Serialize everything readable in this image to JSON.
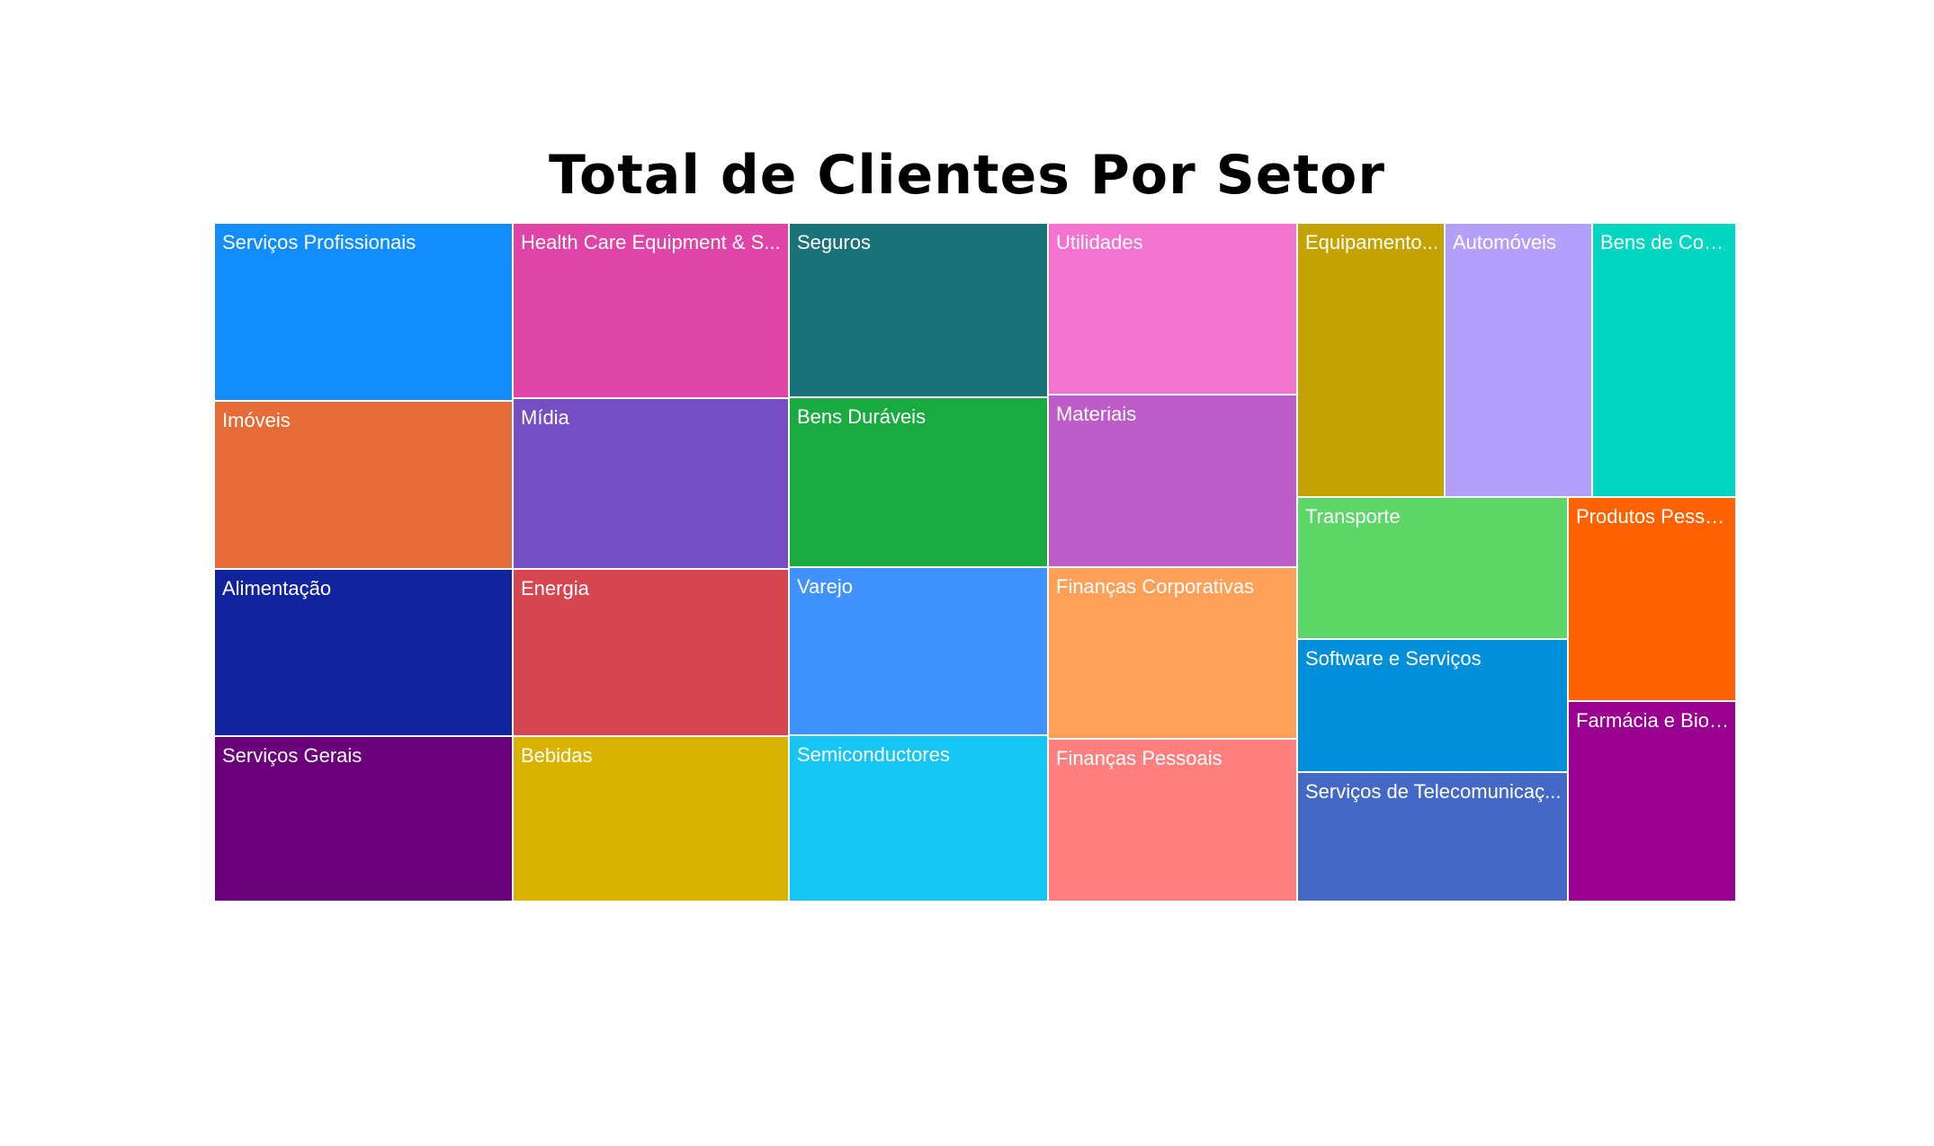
{
  "chart_data": {
    "type": "treemap",
    "title": "Total de Clientes Por Setor",
    "columns": [
      {
        "tiles": [
          {
            "label": "Serviços Profissionais",
            "color": "#118DFF",
            "rel": 198
          },
          {
            "label": "Imóveis",
            "color": "#E66C37",
            "rel": 187
          },
          {
            "label": "Alimentação",
            "color": "#12239E",
            "rel": 186
          },
          {
            "label": "Serviços Gerais",
            "color": "#6B007B",
            "rel": 184
          }
        ]
      },
      {
        "tiles": [
          {
            "label": "Health Care Equipment & S...",
            "color": "#E044A7",
            "rel": 195
          },
          {
            "label": "Mídia",
            "color": "#744EC2",
            "rel": 190
          },
          {
            "label": "Energia",
            "color": "#D64550",
            "rel": 186
          },
          {
            "label": "Bebidas",
            "color": "#D9B300",
            "rel": 184
          }
        ]
      },
      {
        "tiles": [
          {
            "label": "Seguros",
            "color": "#197278",
            "rel": 194
          },
          {
            "label": "Bens Duráveis",
            "color": "#1AAB40",
            "rel": 189
          },
          {
            "label": "Varejo",
            "color": "#4092FF",
            "rel": 187
          },
          {
            "label": "Semiconductores",
            "color": "#15C6F4",
            "rel": 185
          }
        ]
      },
      {
        "tiles": [
          {
            "label": "Utilidades",
            "color": "#F472D0",
            "rel": 191
          },
          {
            "label": "Materiais",
            "color": "#BE5DC9",
            "rel": 192
          },
          {
            "label": "Finanças Corporativas",
            "color": "#FFA058",
            "rel": 191
          },
          {
            "label": "Finanças Pessoais",
            "color": "#FF7F7F",
            "rel": 181
          }
        ]
      }
    ],
    "right_block": {
      "top_row": [
        {
          "label": "Equipamento...",
          "color": "#C4A200",
          "rel": 165
        },
        {
          "label": "Automóveis",
          "color": "#B3A0FC",
          "rel": 165
        },
        {
          "label": "Bens de Con...",
          "color": "#00D6C1",
          "rel": 160
        }
      ],
      "left_stack": [
        {
          "label": "Transporte",
          "color": "#5BD667",
          "rel": 158
        },
        {
          "label": "Software e Serviços",
          "color": "#008FD8",
          "rel": 148
        },
        {
          "label": "Serviços de Telecomunicaç...",
          "color": "#4368C5",
          "rel": 145
        }
      ],
      "right_stack": [
        {
          "label": "Produtos Pesso...",
          "color": "#FF6200",
          "rel": 228
        },
        {
          "label": "Farmácia e Biot...",
          "color": "#990090",
          "rel": 223
        }
      ]
    }
  }
}
